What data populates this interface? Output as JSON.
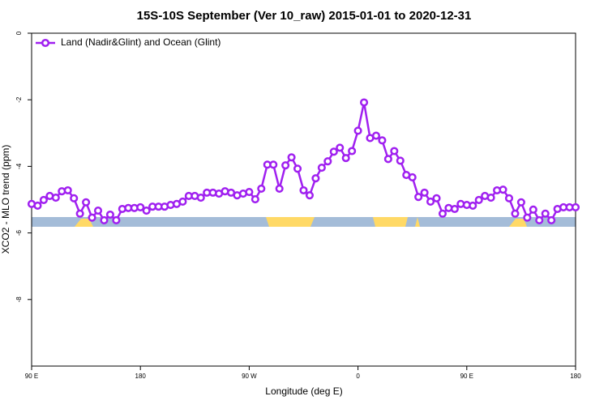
{
  "chart_data": {
    "type": "line",
    "title": "15S-10S September (Ver 10_raw)   2015-01-01 to 2020-12-31",
    "x_label": "Longitude (deg E)",
    "y_label": "XCO2 - MLO trend (ppm)",
    "xlim": [
      90,
      540
    ],
    "ylim": [
      -10,
      0
    ],
    "xticks": [
      {
        "value": 90,
        "label": "90 E"
      },
      180,
      {
        "value": 270,
        "label": "90 W"
      },
      {
        "value": 360,
        "label": "0"
      },
      {
        "value": 450,
        "label": "90 E"
      },
      {
        "value": 540,
        "label": "180"
      }
    ],
    "yticks": [
      -8,
      -6,
      -4,
      -2,
      0
    ],
    "legend": "top-left",
    "x": [
      90,
      95,
      100,
      105,
      110,
      115,
      120,
      125,
      130,
      135,
      140,
      145,
      150,
      155,
      160,
      165,
      170,
      175,
      180,
      185,
      190,
      195,
      200,
      205,
      210,
      215,
      220,
      225,
      230,
      235,
      240,
      245,
      250,
      255,
      260,
      265,
      270,
      275,
      280,
      285,
      290,
      295,
      300,
      305,
      310,
      315,
      320,
      325,
      330,
      335,
      340,
      345,
      350,
      355,
      360,
      365,
      370,
      375,
      380,
      385,
      390,
      395,
      400,
      405,
      410,
      415,
      420,
      425,
      430,
      435,
      440,
      445,
      450,
      455,
      460,
      465,
      470,
      475,
      480,
      485,
      490,
      495,
      500,
      505,
      510,
      515,
      520,
      525,
      530,
      535,
      540
    ],
    "series": [
      {
        "name": "Land (Nadir&Glint) and Ocean (Glint)",
        "color": "#a020f0",
        "values": [
          -5.13,
          -5.18,
          -5.01,
          -4.89,
          -4.94,
          -4.75,
          -4.72,
          -4.96,
          -5.42,
          -5.08,
          -5.54,
          -5.33,
          -5.62,
          -5.45,
          -5.62,
          -5.28,
          -5.25,
          -5.25,
          -5.23,
          -5.33,
          -5.21,
          -5.21,
          -5.21,
          -5.16,
          -5.13,
          -5.06,
          -4.89,
          -4.89,
          -4.94,
          -4.79,
          -4.79,
          -4.82,
          -4.75,
          -4.79,
          -4.87,
          -4.82,
          -4.77,
          -4.99,
          -4.67,
          -3.95,
          -3.95,
          -4.67,
          -3.97,
          -3.73,
          -4.07,
          -4.72,
          -4.87,
          -4.36,
          -4.04,
          -3.85,
          -3.56,
          -3.44,
          -3.75,
          -3.54,
          -2.93,
          -2.08,
          -3.15,
          -3.08,
          -3.22,
          -3.78,
          -3.54,
          -3.83,
          -4.26,
          -4.33,
          -4.92,
          -4.79,
          -5.06,
          -4.96,
          -5.42,
          -5.25,
          -5.28,
          -5.13,
          -5.16,
          -5.18,
          -5.01,
          -4.89,
          -4.94,
          -4.72,
          -4.7,
          -4.96,
          -5.42,
          -5.08,
          -5.54,
          -5.3,
          -5.62,
          -5.42,
          -5.62,
          -5.28,
          -5.23,
          -5.23,
          -5.23
        ]
      }
    ]
  }
}
